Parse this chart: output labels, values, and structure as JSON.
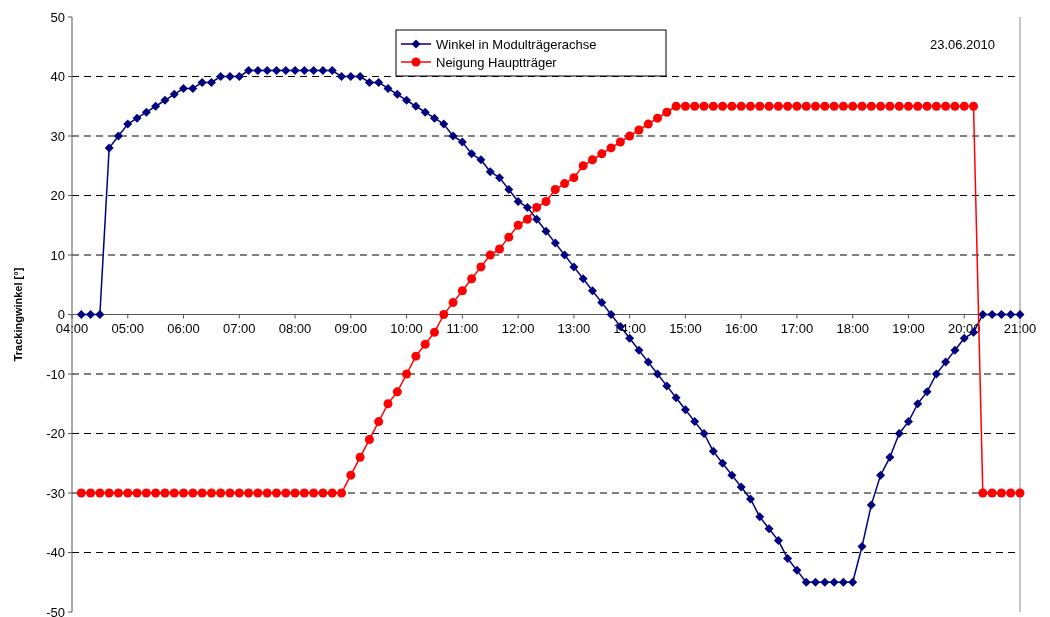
{
  "chart_data": {
    "type": "line",
    "ylabel": "Trackingwinkel [°]",
    "annotations": [
      "23.06.2010"
    ],
    "legend": "top",
    "grid": "y",
    "xlim": [
      4,
      21
    ],
    "xticks": [
      {
        "value": 4,
        "label": "04:00"
      },
      {
        "value": 5,
        "label": "05:00"
      },
      {
        "value": 6,
        "label": "06:00"
      },
      {
        "value": 7,
        "label": "07:00"
      },
      {
        "value": 8,
        "label": "08:00"
      },
      {
        "value": 9,
        "label": "09:00"
      },
      {
        "value": 10,
        "label": "10:00"
      },
      {
        "value": 11,
        "label": "11:00"
      },
      {
        "value": 12,
        "label": "12:00"
      },
      {
        "value": 13,
        "label": "13:00"
      },
      {
        "value": 14,
        "label": "14:00"
      },
      {
        "value": 15,
        "label": "15:00"
      },
      {
        "value": 16,
        "label": "16:00"
      },
      {
        "value": 17,
        "label": "17:00"
      },
      {
        "value": 18,
        "label": "18:00"
      },
      {
        "value": 19,
        "label": "19:00"
      },
      {
        "value": 20,
        "label": "20:00"
      },
      {
        "value": 21,
        "label": "21:00"
      }
    ],
    "ylim": [
      -50,
      50
    ],
    "yticks": [
      -50,
      -40,
      -30,
      -20,
      -10,
      0,
      10,
      20,
      30,
      40,
      50
    ],
    "x": [
      4.1667,
      4.3333,
      4.5,
      4.6667,
      4.8333,
      5,
      5.1667,
      5.3333,
      5.5,
      5.6667,
      5.8333,
      6,
      6.1667,
      6.3333,
      6.5,
      6.6667,
      6.8333,
      7,
      7.1667,
      7.3333,
      7.5,
      7.6667,
      7.8333,
      8,
      8.1667,
      8.3333,
      8.5,
      8.6667,
      8.8333,
      9,
      9.1667,
      9.3333,
      9.5,
      9.6667,
      9.8333,
      10,
      10.1667,
      10.3333,
      10.5,
      10.6667,
      10.8333,
      11,
      11.1667,
      11.3333,
      11.5,
      11.6667,
      11.8333,
      12,
      12.1667,
      12.3333,
      12.5,
      12.6667,
      12.8333,
      13,
      13.1667,
      13.3333,
      13.5,
      13.6667,
      13.8333,
      14,
      14.1667,
      14.3333,
      14.5,
      14.6667,
      14.8333,
      15,
      15.1667,
      15.3333,
      15.5,
      15.6667,
      15.8333,
      16,
      16.1667,
      16.3333,
      16.5,
      16.6667,
      16.8333,
      17,
      17.1667,
      17.3333,
      17.5,
      17.6667,
      17.8333,
      18,
      18.1667,
      18.3333,
      18.5,
      18.6667,
      18.8333,
      19,
      19.1667,
      19.3333,
      19.5,
      19.6667,
      19.8333,
      20,
      20.1667,
      20.3333,
      20.5,
      20.6667,
      20.8333,
      21
    ],
    "series": [
      {
        "name": "Winkel in Modulträgerachse",
        "color": "#000080",
        "marker": "diamond",
        "values": [
          0,
          0,
          0,
          28,
          30,
          32,
          33,
          34,
          35,
          36,
          37,
          38,
          38,
          39,
          39,
          40,
          40,
          40,
          41,
          41,
          41,
          41,
          41,
          41,
          41,
          41,
          41,
          41,
          40,
          40,
          40,
          39,
          39,
          38,
          37,
          36,
          35,
          34,
          33,
          32,
          30,
          29,
          27,
          26,
          24,
          23,
          21,
          19,
          18,
          16,
          14,
          12,
          10,
          8,
          6,
          4,
          2,
          0,
          -2,
          -4,
          -6,
          -8,
          -10,
          -12,
          -14,
          -16,
          -18,
          -20,
          -23,
          -25,
          -27,
          -29,
          -31,
          -34,
          -36,
          -38,
          -41,
          -43,
          -45,
          -45,
          -45,
          -45,
          -45,
          -45,
          -39,
          -32,
          -27,
          -24,
          -20,
          -18,
          -15,
          -13,
          -10,
          -8,
          -6,
          -4,
          -3,
          0,
          0,
          0,
          0,
          0
        ]
      },
      {
        "name": "Neigung Hauptträger",
        "color": "#ff0000",
        "marker": "circle",
        "values": [
          -30,
          -30,
          -30,
          -30,
          -30,
          -30,
          -30,
          -30,
          -30,
          -30,
          -30,
          -30,
          -30,
          -30,
          -30,
          -30,
          -30,
          -30,
          -30,
          -30,
          -30,
          -30,
          -30,
          -30,
          -30,
          -30,
          -30,
          -30,
          -30,
          -27,
          -24,
          -21,
          -18,
          -15,
          -13,
          -10,
          -7,
          -5,
          -3,
          0,
          2,
          4,
          6,
          8,
          10,
          11,
          13,
          15,
          16,
          18,
          19,
          21,
          22,
          23,
          25,
          26,
          27,
          28,
          29,
          30,
          31,
          32,
          33,
          34,
          35,
          35,
          35,
          35,
          35,
          35,
          35,
          35,
          35,
          35,
          35,
          35,
          35,
          35,
          35,
          35,
          35,
          35,
          35,
          35,
          35,
          35,
          35,
          35,
          35,
          35,
          35,
          35,
          35,
          35,
          35,
          35,
          35,
          -30,
          -30,
          -30,
          -30,
          -30
        ]
      }
    ]
  }
}
